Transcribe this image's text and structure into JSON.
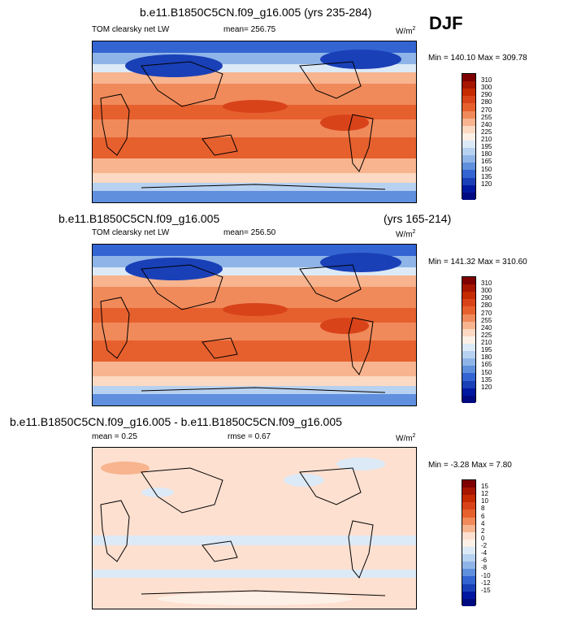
{
  "season": "DJF",
  "units_text": "W/m",
  "units_sup": "2",
  "panels": [
    {
      "title": "b.e11.B1850C5CN.f09_g16.005 (yrs 235-284)",
      "variable": "TOM clearsky net LW",
      "mean": "mean= 256.75",
      "minmax": "Min = 140.10 Max = 309.78",
      "kind": "abs"
    },
    {
      "title": "b.e11.B1850C5CN.f09_g16.005",
      "years": "(yrs 165-214)",
      "variable": "TOM clearsky net LW",
      "mean": "mean= 256.50",
      "minmax": "Min = 141.32 Max = 310.60",
      "kind": "abs"
    },
    {
      "title": "b.e11.B1850C5CN.f09_g16.005 - b.e11.B1850C5CN.f09_g16.005",
      "mean": "mean =  0.25",
      "rmse": "rmse =   0.67",
      "minmax": "Min = -3.28 Max =  7.80",
      "kind": "diff"
    }
  ],
  "colorbar_abs": {
    "levels": [
      "310",
      "300",
      "290",
      "280",
      "270",
      "255",
      "240",
      "225",
      "210",
      "195",
      "180",
      "165",
      "150",
      "135",
      "120"
    ],
    "colors": [
      "#7f0000",
      "#a51500",
      "#c62a00",
      "#d9431a",
      "#e6602e",
      "#f08a5a",
      "#f7b48e",
      "#fbd9c2",
      "#fdf0e6",
      "#dce9f7",
      "#b7d1f0",
      "#8fb5e8",
      "#5f8fdd",
      "#3364d1",
      "#1a40b8",
      "#0018a0",
      "#000a80"
    ]
  },
  "colorbar_diff": {
    "levels": [
      "15",
      "12",
      "10",
      "8",
      "6",
      "4",
      "2",
      "0",
      "-2",
      "-4",
      "-6",
      "-8",
      "-10",
      "-12",
      "-15"
    ],
    "colors": [
      "#7f0000",
      "#a51500",
      "#c62a00",
      "#d9431a",
      "#e6602e",
      "#f08a5a",
      "#f7b48e",
      "#fde0d0",
      "#fdf0e6",
      "#dce9f7",
      "#b7d1f0",
      "#8fb5e8",
      "#5f8fdd",
      "#3364d1",
      "#1a40b8",
      "#0018a0",
      "#000a80"
    ]
  }
}
